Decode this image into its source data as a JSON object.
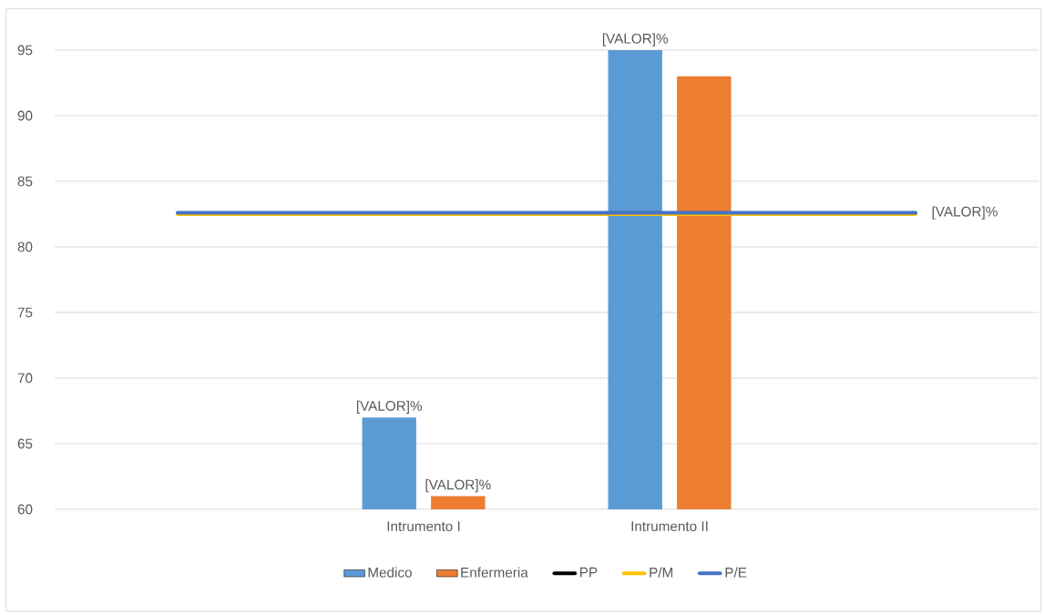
{
  "chart_data": {
    "type": "bar",
    "categories": [
      null,
      "Intrumento I",
      "Intrumento II",
      null
    ],
    "ylim": [
      60,
      95
    ],
    "yticks": [
      60,
      65,
      70,
      75,
      80,
      85,
      90,
      95
    ],
    "grid": "y",
    "legend": "bottom",
    "series": [
      {
        "name": "Medico",
        "color": "#5b9bd5",
        "values": [
          null,
          67,
          95,
          null
        ],
        "value_labels": [
          null,
          "[VALOR]%",
          "[VALOR]%",
          null
        ]
      },
      {
        "name": "Enfermeria",
        "color": "#ed7d31",
        "values": [
          null,
          61,
          93,
          null
        ],
        "value_labels": [
          null,
          "[VALOR]%",
          null,
          null
        ]
      },
      {
        "name": "PP",
        "type": "line",
        "color": "#000000",
        "values": [
          null,
          null,
          null,
          null
        ]
      },
      {
        "name": "P/M",
        "type": "line",
        "color": "#ffc000",
        "values": [
          82.5,
          82.5,
          82.5,
          82.5
        ]
      },
      {
        "name": "P/E",
        "type": "line",
        "color": "#4472c4",
        "values": [
          82.6,
          82.6,
          82.6,
          82.6
        ],
        "value_labels": [
          null,
          null,
          null,
          "[VALOR]%"
        ]
      }
    ]
  }
}
